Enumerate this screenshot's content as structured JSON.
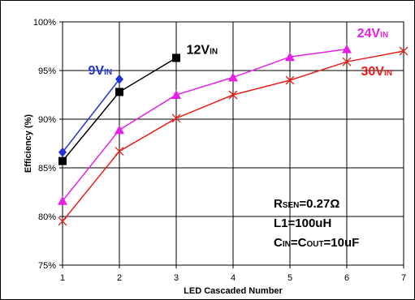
{
  "chart_data": {
    "type": "line",
    "xlabel": "LED Cascaded Number",
    "ylabel": "Efficiency (%)",
    "xlim": [
      1,
      7
    ],
    "ylim": [
      75,
      100
    ],
    "x_ticks": [
      "1",
      "2",
      "3",
      "4",
      "5",
      "6",
      "7"
    ],
    "y_ticks": [
      "75%",
      "80%",
      "85%",
      "90%",
      "95%",
      "100%"
    ],
    "grid": true,
    "series": [
      {
        "label_main": "9V",
        "label_sub": "IN",
        "color": "#1f33d6",
        "marker": "diamond",
        "x": [
          1,
          2
        ],
        "y": [
          86.6,
          94.1
        ]
      },
      {
        "label_main": "12V",
        "label_sub": "IN",
        "color": "#000000",
        "marker": "square",
        "x": [
          1,
          2,
          3
        ],
        "y": [
          85.7,
          92.8,
          96.3
        ]
      },
      {
        "label_main": "24V",
        "label_sub": "IN",
        "color": "#e620e6",
        "marker": "triangle",
        "x": [
          1,
          2,
          3,
          4,
          5,
          6
        ],
        "y": [
          81.6,
          88.9,
          92.5,
          94.3,
          96.4,
          97.2
        ]
      },
      {
        "label_main": "30V",
        "label_sub": "IN",
        "color": "#e8201a",
        "marker": "x",
        "x": [
          1,
          2,
          3,
          4,
          5,
          6,
          7
        ],
        "y": [
          79.5,
          86.7,
          90.1,
          92.5,
          94.0,
          95.9,
          97.0
        ]
      }
    ],
    "annotation": {
      "line1_main": "R",
      "line1_sub": "SEN",
      "line1_rest": "=0.27Ω",
      "line2": "L1=100uH",
      "line3_main1": "C",
      "line3_sub1": "IN",
      "line3_mid": "=C",
      "line3_sub2": "OUT",
      "line3_rest": "=10uF"
    }
  }
}
